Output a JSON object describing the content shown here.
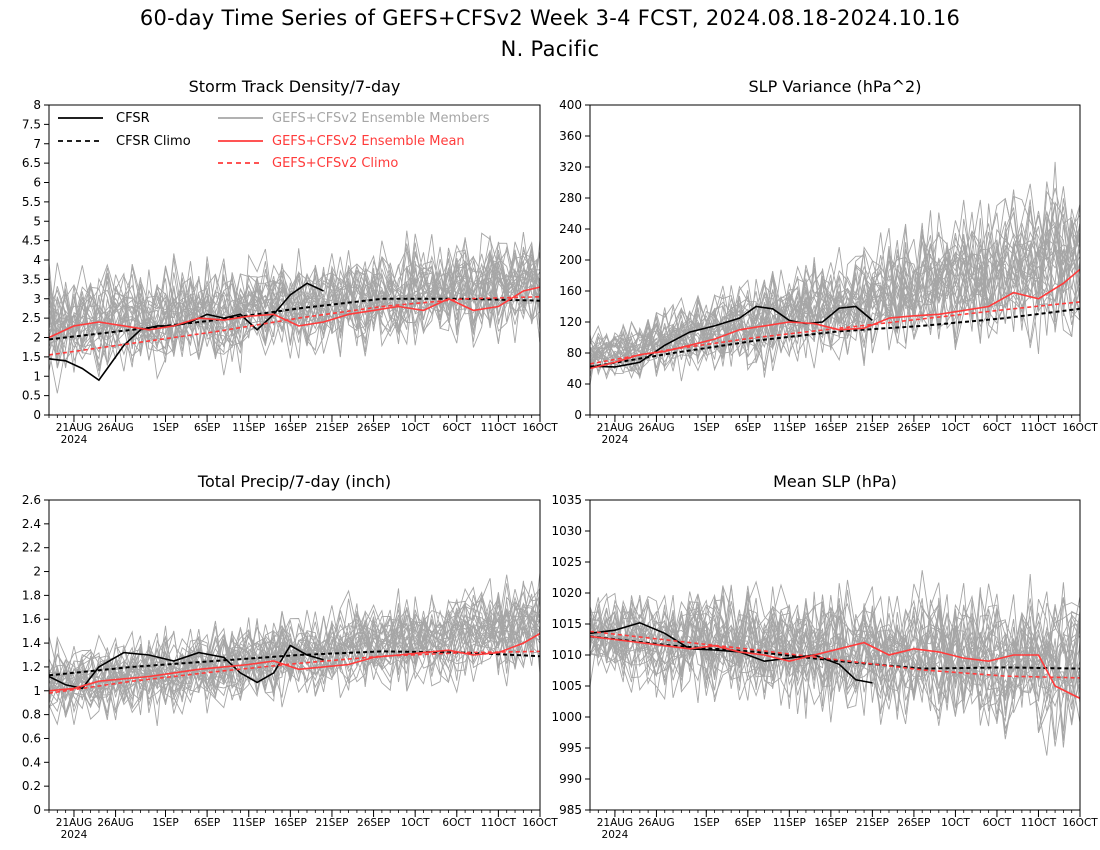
{
  "figure": {
    "title_line1": "60-day Time Series of GEFS+CFSv2 Week 3-4 FCST, 2024.08.18-2024.10.16",
    "title_line2": "N. Pacific",
    "colors": {
      "obs": "#000000",
      "members": "#a6a6a6",
      "mean": "#ff3b3b",
      "axes": "#000000"
    }
  },
  "legend": [
    {
      "label": "CFSR",
      "series": "cfsr",
      "style": "solid",
      "color": "#000000"
    },
    {
      "label": "CFSR Climo",
      "series": "cfsr_climo",
      "style": "dashed",
      "color": "#000000"
    },
    {
      "label": "GEFS+CFSv2 Ensemble Members",
      "series": "members",
      "style": "solid",
      "color": "#a6a6a6"
    },
    {
      "label": "GEFS+CFSv2 Ensemble Mean",
      "series": "ens_mean",
      "style": "solid",
      "color": "#ff3b3b"
    },
    {
      "label": "GEFS+CFSv2 Climo",
      "series": "ens_climo",
      "style": "dashed",
      "color": "#ff3b3b"
    }
  ],
  "chart_data": [
    {
      "type": "line",
      "title": "Storm Track Density/7-day",
      "x_start": "2024-08-18",
      "x_end": "2024-10-16",
      "xticks": [
        "21AUG",
        "26AUG",
        "1SEP",
        "6SEP",
        "11SEP",
        "16SEP",
        "21SEP",
        "26SEP",
        "1OCT",
        "6OCT",
        "11OCT",
        "16OCT"
      ],
      "xtick_dates": [
        "2024-08-21",
        "2024-08-26",
        "2024-09-01",
        "2024-09-06",
        "2024-09-11",
        "2024-09-16",
        "2024-09-21",
        "2024-09-26",
        "2024-10-01",
        "2024-10-06",
        "2024-10-11",
        "2024-10-16"
      ],
      "xtick_year": "2024",
      "ylim": [
        0,
        8
      ],
      "yticks": [
        "0",
        "0.5",
        "1",
        "1.5",
        "2",
        "2.5",
        "3",
        "3.5",
        "4",
        "4.5",
        "5",
        "5.5",
        "6",
        "6.5",
        "7",
        "7.5",
        "8"
      ],
      "series": [
        {
          "name": "CFSR",
          "dates": [
            "2024-08-18",
            "2024-08-20",
            "2024-08-22",
            "2024-08-24",
            "2024-08-25",
            "2024-08-27",
            "2024-08-29",
            "2024-08-31",
            "2024-09-02",
            "2024-09-04",
            "2024-09-06",
            "2024-09-08",
            "2024-09-10",
            "2024-09-12",
            "2024-09-14",
            "2024-09-16",
            "2024-09-18",
            "2024-09-20"
          ],
          "values": [
            1.45,
            1.4,
            1.2,
            0.9,
            1.2,
            1.8,
            2.2,
            2.3,
            2.3,
            2.4,
            2.6,
            2.5,
            2.6,
            2.2,
            2.6,
            3.1,
            3.4,
            3.2
          ]
        },
        {
          "name": "CFSR Climo",
          "dates": [
            "2024-08-18",
            "2024-08-28",
            "2024-09-07",
            "2024-09-17",
            "2024-09-27",
            "2024-10-07",
            "2024-10-16"
          ],
          "values": [
            1.95,
            2.2,
            2.45,
            2.75,
            3.0,
            3.0,
            2.95
          ]
        },
        {
          "name": "GEFS+CFSv2 Ensemble Mean",
          "dates": [
            "2024-08-18",
            "2024-08-21",
            "2024-08-24",
            "2024-08-27",
            "2024-08-30",
            "2024-09-02",
            "2024-09-05",
            "2024-09-08",
            "2024-09-11",
            "2024-09-14",
            "2024-09-17",
            "2024-09-20",
            "2024-09-23",
            "2024-09-26",
            "2024-09-29",
            "2024-10-02",
            "2024-10-05",
            "2024-10-08",
            "2024-10-11",
            "2024-10-14",
            "2024-10-16"
          ],
          "values": [
            2.0,
            2.3,
            2.4,
            2.3,
            2.2,
            2.3,
            2.5,
            2.45,
            2.55,
            2.6,
            2.3,
            2.4,
            2.6,
            2.7,
            2.8,
            2.7,
            3.0,
            2.7,
            2.8,
            3.2,
            3.3
          ]
        },
        {
          "name": "GEFS+CFSv2 Climo",
          "dates": [
            "2024-08-18",
            "2024-08-28",
            "2024-09-07",
            "2024-09-17",
            "2024-09-27",
            "2024-10-07",
            "2024-10-16"
          ],
          "values": [
            1.55,
            1.85,
            2.15,
            2.5,
            2.8,
            3.0,
            3.05
          ]
        }
      ],
      "members_envelope": {
        "low": [
          0.8,
          2.0
        ],
        "high": [
          3.8,
          4.8
        ],
        "count": 30
      }
    },
    {
      "type": "line",
      "title": "SLP Variance (hPa^2)",
      "x_start": "2024-08-18",
      "x_end": "2024-10-16",
      "xticks": [
        "21AUG",
        "26AUG",
        "1SEP",
        "6SEP",
        "11SEP",
        "16SEP",
        "21SEP",
        "26SEP",
        "1OCT",
        "6OCT",
        "11OCT",
        "16OCT"
      ],
      "xtick_dates": [
        "2024-08-21",
        "2024-08-26",
        "2024-09-01",
        "2024-09-06",
        "2024-09-11",
        "2024-09-16",
        "2024-09-21",
        "2024-09-26",
        "2024-10-01",
        "2024-10-06",
        "2024-10-11",
        "2024-10-16"
      ],
      "xtick_year": "2024",
      "ylim": [
        0,
        400
      ],
      "yticks": [
        "0",
        "40",
        "80",
        "120",
        "160",
        "200",
        "240",
        "280",
        "320",
        "360",
        "400"
      ],
      "series": [
        {
          "name": "CFSR",
          "dates": [
            "2024-08-18",
            "2024-08-21",
            "2024-08-24",
            "2024-08-27",
            "2024-08-30",
            "2024-09-02",
            "2024-09-05",
            "2024-09-07",
            "2024-09-09",
            "2024-09-11",
            "2024-09-13",
            "2024-09-15",
            "2024-09-17",
            "2024-09-19",
            "2024-09-21"
          ],
          "values": [
            63,
            62,
            68,
            90,
            107,
            115,
            125,
            140,
            137,
            122,
            118,
            120,
            138,
            140,
            122
          ]
        },
        {
          "name": "CFSR Climo",
          "dates": [
            "2024-08-18",
            "2024-08-28",
            "2024-09-07",
            "2024-09-17",
            "2024-09-27",
            "2024-10-07",
            "2024-10-16"
          ],
          "values": [
            62,
            80,
            96,
            108,
            115,
            125,
            137
          ]
        },
        {
          "name": "GEFS+CFSv2 Ensemble Mean",
          "dates": [
            "2024-08-18",
            "2024-08-21",
            "2024-08-24",
            "2024-08-27",
            "2024-08-30",
            "2024-09-02",
            "2024-09-05",
            "2024-09-08",
            "2024-09-11",
            "2024-09-14",
            "2024-09-17",
            "2024-09-20",
            "2024-09-23",
            "2024-09-26",
            "2024-09-29",
            "2024-10-02",
            "2024-10-05",
            "2024-10-08",
            "2024-10-11",
            "2024-10-14",
            "2024-10-16"
          ],
          "values": [
            60,
            68,
            78,
            82,
            90,
            98,
            110,
            115,
            120,
            118,
            110,
            112,
            125,
            128,
            130,
            135,
            140,
            158,
            150,
            170,
            188
          ]
        },
        {
          "name": "GEFS+CFSv2 Climo",
          "dates": [
            "2024-08-18",
            "2024-08-28",
            "2024-09-07",
            "2024-09-17",
            "2024-09-27",
            "2024-10-07",
            "2024-10-16"
          ],
          "values": [
            66,
            85,
            100,
            112,
            124,
            136,
            146
          ]
        }
      ],
      "members_envelope": {
        "low": [
          40,
          90
        ],
        "high": [
          110,
          320
        ],
        "count": 30
      }
    },
    {
      "type": "line",
      "title": "Total Precip/7-day (inch)",
      "x_start": "2024-08-18",
      "x_end": "2024-10-16",
      "xticks": [
        "21AUG",
        "26AUG",
        "1SEP",
        "6SEP",
        "11SEP",
        "16SEP",
        "21SEP",
        "26SEP",
        "1OCT",
        "6OCT",
        "11OCT",
        "16OCT"
      ],
      "xtick_dates": [
        "2024-08-21",
        "2024-08-26",
        "2024-09-01",
        "2024-09-06",
        "2024-09-11",
        "2024-09-16",
        "2024-09-21",
        "2024-09-26",
        "2024-10-01",
        "2024-10-06",
        "2024-10-11",
        "2024-10-16"
      ],
      "xtick_year": "2024",
      "ylim": [
        0,
        2.6
      ],
      "yticks": [
        "0",
        "0.2",
        "0.4",
        "0.6",
        "0.8",
        "1",
        "1.2",
        "1.4",
        "1.6",
        "1.8",
        "2",
        "2.2",
        "2.4",
        "2.6"
      ],
      "series": [
        {
          "name": "CFSR",
          "dates": [
            "2024-08-18",
            "2024-08-20",
            "2024-08-22",
            "2024-08-24",
            "2024-08-27",
            "2024-08-30",
            "2024-09-02",
            "2024-09-05",
            "2024-09-08",
            "2024-09-10",
            "2024-09-12",
            "2024-09-14",
            "2024-09-16",
            "2024-09-18",
            "2024-09-20"
          ],
          "values": [
            1.12,
            1.05,
            1.02,
            1.2,
            1.32,
            1.3,
            1.25,
            1.32,
            1.28,
            1.15,
            1.07,
            1.15,
            1.38,
            1.3,
            1.26
          ]
        },
        {
          "name": "CFSR Climo",
          "dates": [
            "2024-08-18",
            "2024-08-28",
            "2024-09-07",
            "2024-09-17",
            "2024-09-27",
            "2024-10-07",
            "2024-10-16"
          ],
          "values": [
            1.13,
            1.2,
            1.25,
            1.3,
            1.33,
            1.32,
            1.29
          ]
        },
        {
          "name": "GEFS+CFSv2 Ensemble Mean",
          "dates": [
            "2024-08-18",
            "2024-08-21",
            "2024-08-24",
            "2024-08-27",
            "2024-08-30",
            "2024-09-02",
            "2024-09-05",
            "2024-09-08",
            "2024-09-11",
            "2024-09-14",
            "2024-09-17",
            "2024-09-20",
            "2024-09-23",
            "2024-09-26",
            "2024-09-29",
            "2024-10-02",
            "2024-10-05",
            "2024-10-08",
            "2024-10-11",
            "2024-10-14",
            "2024-10-16"
          ],
          "values": [
            1.0,
            1.02,
            1.08,
            1.1,
            1.12,
            1.15,
            1.18,
            1.2,
            1.22,
            1.25,
            1.18,
            1.2,
            1.22,
            1.28,
            1.3,
            1.32,
            1.34,
            1.3,
            1.32,
            1.4,
            1.48
          ]
        },
        {
          "name": "GEFS+CFSv2 Climo",
          "dates": [
            "2024-08-18",
            "2024-08-28",
            "2024-09-07",
            "2024-09-17",
            "2024-09-27",
            "2024-10-07",
            "2024-10-16"
          ],
          "values": [
            0.98,
            1.08,
            1.16,
            1.23,
            1.29,
            1.32,
            1.33
          ]
        }
      ],
      "members_envelope": {
        "low": [
          0.7,
          1.1
        ],
        "high": [
          1.4,
          2.0
        ],
        "count": 30
      }
    },
    {
      "type": "line",
      "title": "Mean SLP (hPa)",
      "x_start": "2024-08-18",
      "x_end": "2024-10-16",
      "xticks": [
        "21AUG",
        "26AUG",
        "1SEP",
        "6SEP",
        "11SEP",
        "16SEP",
        "21SEP",
        "26SEP",
        "1OCT",
        "6OCT",
        "11OCT",
        "16OCT"
      ],
      "xtick_dates": [
        "2024-08-21",
        "2024-08-26",
        "2024-09-01",
        "2024-09-06",
        "2024-09-11",
        "2024-09-16",
        "2024-09-21",
        "2024-09-26",
        "2024-10-01",
        "2024-10-06",
        "2024-10-11",
        "2024-10-16"
      ],
      "xtick_year": "2024",
      "ylim": [
        985,
        1035
      ],
      "yticks": [
        "985",
        "990",
        "995",
        "1000",
        "1005",
        "1010",
        "1015",
        "1020",
        "1025",
        "1030",
        "1035"
      ],
      "series": [
        {
          "name": "CFSR",
          "dates": [
            "2024-08-18",
            "2024-08-21",
            "2024-08-24",
            "2024-08-27",
            "2024-08-30",
            "2024-09-02",
            "2024-09-05",
            "2024-09-08",
            "2024-09-11",
            "2024-09-14",
            "2024-09-17",
            "2024-09-19",
            "2024-09-21"
          ],
          "values": [
            1013.5,
            1014,
            1015.2,
            1013.5,
            1011,
            1010.8,
            1010.5,
            1009,
            1009.5,
            1010,
            1008.5,
            1006,
            1005.5
          ]
        },
        {
          "name": "CFSR Climo",
          "dates": [
            "2024-08-18",
            "2024-08-28",
            "2024-09-07",
            "2024-09-17",
            "2024-09-27",
            "2024-10-07",
            "2024-10-16"
          ],
          "values": [
            1013,
            1011.5,
            1010.5,
            1009,
            1007.8,
            1008,
            1007.8
          ]
        },
        {
          "name": "GEFS+CFSv2 Ensemble Mean",
          "dates": [
            "2024-08-18",
            "2024-08-21",
            "2024-08-24",
            "2024-08-27",
            "2024-08-30",
            "2024-09-02",
            "2024-09-05",
            "2024-09-08",
            "2024-09-11",
            "2024-09-14",
            "2024-09-17",
            "2024-09-20",
            "2024-09-23",
            "2024-09-26",
            "2024-09-29",
            "2024-10-02",
            "2024-10-05",
            "2024-10-08",
            "2024-10-11",
            "2024-10-13",
            "2024-10-16"
          ],
          "values": [
            1013,
            1012.5,
            1012,
            1011.5,
            1011,
            1011.5,
            1010.5,
            1010,
            1009,
            1010,
            1011,
            1012,
            1010,
            1011,
            1010.5,
            1009.5,
            1009,
            1010,
            1010,
            1005,
            1003
          ]
        },
        {
          "name": "GEFS+CFSv2 Climo",
          "dates": [
            "2024-08-18",
            "2024-08-28",
            "2024-09-07",
            "2024-09-17",
            "2024-09-27",
            "2024-10-07",
            "2024-10-16"
          ],
          "values": [
            1013.8,
            1012.3,
            1010.8,
            1009.2,
            1007.6,
            1006.6,
            1006.3
          ]
        }
      ],
      "members_envelope": {
        "low": [
          1005,
          995
        ],
        "high": [
          1021,
          1022
        ],
        "count": 30
      }
    }
  ]
}
